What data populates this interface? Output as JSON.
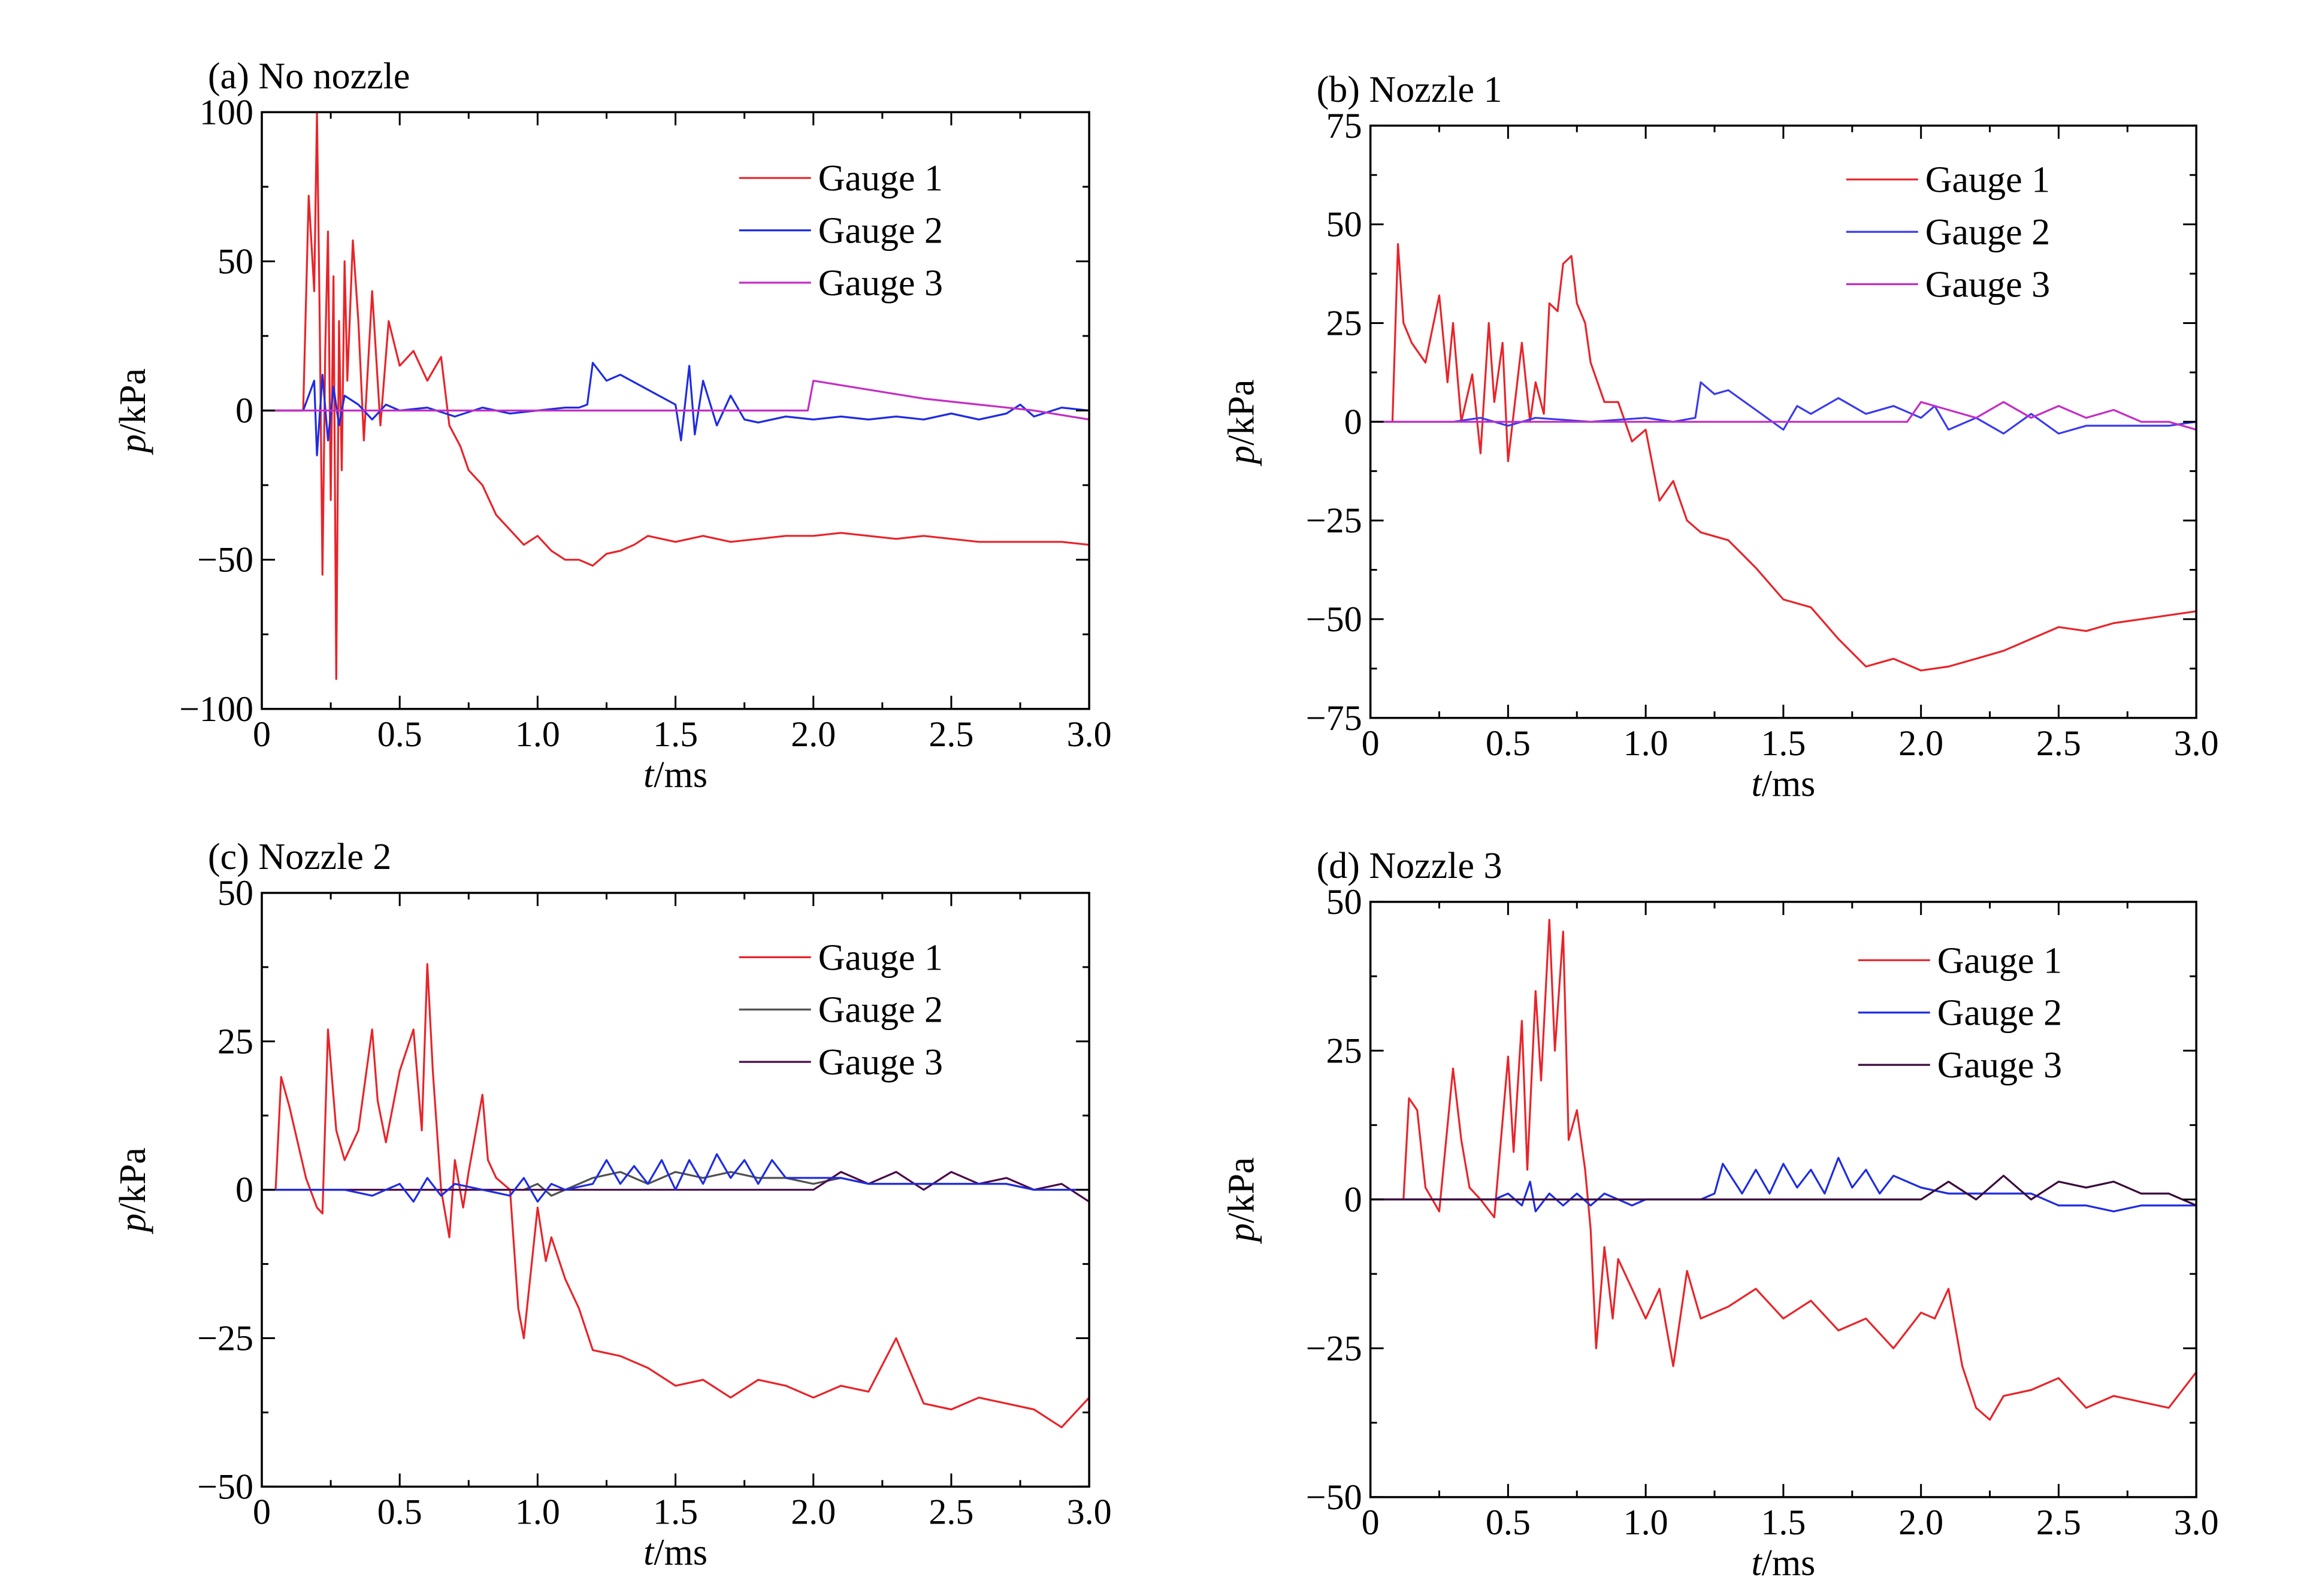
{
  "chart_data": [
    {
      "type": "line",
      "title": "(a) No nozzle",
      "xlabel_var": "t",
      "xlabel_unit": "/ms",
      "ylabel_var": "p",
      "ylabel_unit": "/kPa",
      "xlim": [
        0,
        3.0
      ],
      "ylim": [
        -100,
        100
      ],
      "xticks": [
        "0",
        "0.5",
        "1.0",
        "1.5",
        "2.0",
        "2.5",
        "3.0"
      ],
      "yticks": [
        "−100",
        "−50",
        "0",
        "50",
        "100"
      ],
      "yticks_values": [
        -100,
        -50,
        0,
        50,
        100
      ],
      "legend_position": "top-right",
      "grid": false,
      "series": [
        {
          "name": "Gauge 1",
          "color": "#e8242a",
          "x": [
            0,
            0.15,
            0.17,
            0.19,
            0.2,
            0.21,
            0.22,
            0.23,
            0.24,
            0.25,
            0.26,
            0.27,
            0.28,
            0.29,
            0.3,
            0.31,
            0.33,
            0.35,
            0.37,
            0.4,
            0.43,
            0.46,
            0.5,
            0.55,
            0.6,
            0.65,
            0.68,
            0.72,
            0.75,
            0.8,
            0.85,
            0.9,
            0.95,
            1.0,
            1.05,
            1.1,
            1.15,
            1.2,
            1.25,
            1.3,
            1.35,
            1.4,
            1.5,
            1.6,
            1.7,
            1.8,
            1.9,
            2.0,
            2.1,
            2.2,
            2.3,
            2.4,
            2.5,
            2.6,
            2.7,
            2.8,
            2.9,
            3.0
          ],
          "y": [
            0,
            0,
            72,
            40,
            100,
            30,
            -55,
            20,
            60,
            -30,
            45,
            -90,
            30,
            -20,
            50,
            10,
            57,
            30,
            -10,
            40,
            -5,
            30,
            15,
            20,
            10,
            18,
            -5,
            -12,
            -20,
            -25,
            -35,
            -40,
            -45,
            -42,
            -47,
            -50,
            -50,
            -52,
            -48,
            -47,
            -45,
            -42,
            -44,
            -42,
            -44,
            -43,
            -42,
            -42,
            -41,
            -42,
            -43,
            -42,
            -43,
            -44,
            -44,
            -44,
            -44,
            -45
          ]
        },
        {
          "name": "Gauge 2",
          "color": "#1f2ce0",
          "x": [
            0,
            0.15,
            0.19,
            0.2,
            0.22,
            0.24,
            0.26,
            0.28,
            0.3,
            0.35,
            0.4,
            0.45,
            0.5,
            0.6,
            0.7,
            0.8,
            0.9,
            1.0,
            1.1,
            1.15,
            1.18,
            1.2,
            1.25,
            1.3,
            1.4,
            1.5,
            1.52,
            1.55,
            1.57,
            1.6,
            1.65,
            1.7,
            1.75,
            1.8,
            1.9,
            2.0,
            2.1,
            2.2,
            2.3,
            2.4,
            2.5,
            2.6,
            2.7,
            2.75,
            2.8,
            2.9,
            3.0
          ],
          "y": [
            0,
            0,
            10,
            -15,
            12,
            -10,
            8,
            -5,
            5,
            2,
            -3,
            2,
            0,
            1,
            -2,
            1,
            -1,
            0,
            1,
            1,
            2,
            16,
            10,
            12,
            7,
            2,
            -10,
            15,
            -8,
            10,
            -5,
            5,
            -3,
            -4,
            -2,
            -3,
            -2,
            -3,
            -2,
            -3,
            -1,
            -3,
            -1,
            2,
            -2,
            1,
            0
          ]
        },
        {
          "name": "Gauge 3",
          "color": "#c42ec4",
          "x": [
            0,
            1.98,
            2.0,
            2.2,
            2.4,
            2.6,
            2.8,
            3.0
          ],
          "y": [
            0,
            0,
            10,
            7,
            4,
            2,
            0,
            -3
          ]
        }
      ]
    },
    {
      "type": "line",
      "title": "(b) Nozzle 1",
      "xlabel_var": "t",
      "xlabel_unit": "/ms",
      "ylabel_var": "p",
      "ylabel_unit": "/kPa",
      "xlim": [
        0,
        3.0
      ],
      "ylim": [
        -75,
        75
      ],
      "xticks": [
        "0",
        "0.5",
        "1.0",
        "1.5",
        "2.0",
        "2.5",
        "3.0"
      ],
      "yticks": [
        "−75",
        "−50",
        "−25",
        "0",
        "25",
        "50",
        "75"
      ],
      "yticks_values": [
        -75,
        -50,
        -25,
        0,
        25,
        50,
        75
      ],
      "legend_position": "top-right",
      "grid": false,
      "series": [
        {
          "name": "Gauge 1",
          "color": "#e8242a",
          "x": [
            0,
            0.08,
            0.1,
            0.12,
            0.15,
            0.2,
            0.25,
            0.28,
            0.3,
            0.33,
            0.37,
            0.4,
            0.43,
            0.45,
            0.48,
            0.5,
            0.55,
            0.58,
            0.6,
            0.63,
            0.65,
            0.68,
            0.7,
            0.73,
            0.75,
            0.78,
            0.8,
            0.85,
            0.9,
            0.95,
            1.0,
            1.05,
            1.1,
            1.15,
            1.2,
            1.3,
            1.4,
            1.5,
            1.6,
            1.7,
            1.8,
            1.9,
            2.0,
            2.1,
            2.2,
            2.3,
            2.4,
            2.5,
            2.6,
            2.7,
            2.8,
            2.9,
            3.0
          ],
          "y": [
            0,
            0,
            45,
            25,
            20,
            15,
            32,
            10,
            25,
            0,
            12,
            -8,
            25,
            5,
            20,
            -10,
            20,
            0,
            10,
            2,
            30,
            28,
            40,
            42,
            30,
            25,
            15,
            5,
            5,
            -5,
            -2,
            -20,
            -15,
            -25,
            -28,
            -30,
            -37,
            -45,
            -47,
            -55,
            -62,
            -60,
            -63,
            -62,
            -60,
            -58,
            -55,
            -52,
            -53,
            -51,
            -50,
            -49,
            -48
          ]
        },
        {
          "name": "Gauge 2",
          "color": "#3a3af0",
          "x": [
            0,
            0.3,
            0.4,
            0.5,
            0.6,
            0.8,
            1.0,
            1.1,
            1.18,
            1.2,
            1.25,
            1.3,
            1.4,
            1.5,
            1.55,
            1.6,
            1.7,
            1.8,
            1.9,
            2.0,
            2.05,
            2.1,
            2.2,
            2.3,
            2.4,
            2.5,
            2.6,
            2.7,
            2.8,
            2.9,
            3.0
          ],
          "y": [
            0,
            0,
            1,
            -1,
            1,
            0,
            1,
            0,
            1,
            10,
            7,
            8,
            3,
            -2,
            4,
            2,
            6,
            2,
            4,
            1,
            4,
            -2,
            1,
            -3,
            2,
            -3,
            -1,
            -1,
            -1,
            -1,
            0
          ]
        },
        {
          "name": "Gauge 3",
          "color": "#c42ec4",
          "x": [
            0,
            1.95,
            2.0,
            2.1,
            2.2,
            2.3,
            2.4,
            2.5,
            2.6,
            2.7,
            2.8,
            2.9,
            3.0
          ],
          "y": [
            0,
            0,
            5,
            3,
            1,
            5,
            1,
            4,
            1,
            3,
            0,
            0,
            -2
          ]
        }
      ]
    },
    {
      "type": "line",
      "title": "(c) Nozzle 2",
      "xlabel_var": "t",
      "xlabel_unit": "/ms",
      "ylabel_var": "p",
      "ylabel_unit": "/kPa",
      "xlim": [
        0,
        3.0
      ],
      "ylim": [
        -50,
        50
      ],
      "xticks": [
        "0",
        "0.5",
        "1.0",
        "1.5",
        "2.0",
        "2.5",
        "3.0"
      ],
      "yticks": [
        "−50",
        "−25",
        "0",
        "25",
        "50"
      ],
      "yticks_values": [
        -50,
        -25,
        0,
        25,
        50
      ],
      "legend_position": "top-right",
      "grid": false,
      "series": [
        {
          "name": "Gauge 1",
          "color": "#e8242a",
          "x": [
            0,
            0.05,
            0.07,
            0.1,
            0.13,
            0.16,
            0.2,
            0.22,
            0.24,
            0.27,
            0.3,
            0.35,
            0.4,
            0.42,
            0.45,
            0.5,
            0.55,
            0.58,
            0.6,
            0.62,
            0.65,
            0.68,
            0.7,
            0.73,
            0.75,
            0.8,
            0.82,
            0.85,
            0.9,
            0.93,
            0.95,
            1.0,
            1.03,
            1.05,
            1.1,
            1.15,
            1.2,
            1.3,
            1.4,
            1.5,
            1.6,
            1.7,
            1.8,
            1.9,
            2.0,
            2.1,
            2.2,
            2.3,
            2.4,
            2.5,
            2.6,
            2.7,
            2.8,
            2.9,
            3.0
          ],
          "y": [
            0,
            0,
            19,
            14,
            8,
            2,
            -3,
            -4,
            27,
            10,
            5,
            10,
            27,
            15,
            8,
            20,
            27,
            10,
            38,
            20,
            0,
            -8,
            5,
            -3,
            3,
            16,
            5,
            2,
            0,
            -20,
            -25,
            -3,
            -12,
            -8,
            -15,
            -20,
            -27,
            -28,
            -30,
            -33,
            -32,
            -35,
            -32,
            -33,
            -35,
            -33,
            -34,
            -25,
            -36,
            -37,
            -35,
            -36,
            -37,
            -40,
            -35
          ]
        },
        {
          "name": "Gauge 2",
          "color": "#505050",
          "x": [
            0,
            0.95,
            1.0,
            1.05,
            1.1,
            1.2,
            1.3,
            1.4,
            1.5,
            1.6,
            1.7,
            1.8,
            1.9,
            2.0,
            2.1,
            2.2,
            2.3,
            2.4,
            2.5,
            2.6,
            2.7,
            2.8,
            2.9,
            3.0
          ],
          "y": [
            0,
            0,
            1,
            -1,
            0,
            2,
            3,
            1,
            3,
            2,
            3,
            2,
            2,
            1,
            2,
            1,
            1,
            1,
            1,
            1,
            1,
            0,
            0,
            0
          ]
        },
        {
          "name": "Gauge 3",
          "color": "#4a0a4a",
          "x": [
            0,
            2.0,
            2.1,
            2.2,
            2.3,
            2.4,
            2.5,
            2.6,
            2.7,
            2.8,
            2.9,
            3.0
          ],
          "y": [
            0,
            0,
            3,
            1,
            3,
            0,
            3,
            1,
            2,
            0,
            1,
            -2
          ]
        },
        {
          "name": "",
          "color": "#1f2ce0",
          "x": [
            0,
            0.3,
            0.4,
            0.5,
            0.55,
            0.6,
            0.65,
            0.7,
            0.8,
            0.9,
            0.95,
            1.0,
            1.05,
            1.1,
            1.2,
            1.25,
            1.3,
            1.35,
            1.4,
            1.45,
            1.5,
            1.55,
            1.6,
            1.65,
            1.7,
            1.75,
            1.8,
            1.85,
            1.9,
            2.0,
            2.1,
            2.2,
            2.3,
            2.4,
            2.5,
            2.6,
            2.7,
            2.8,
            2.9,
            3.0
          ],
          "y": [
            0,
            0,
            -1,
            1,
            -2,
            2,
            -1,
            1,
            0,
            -1,
            2,
            -2,
            1,
            0,
            1,
            5,
            1,
            4,
            1,
            5,
            0,
            5,
            1,
            6,
            2,
            5,
            1,
            5,
            2,
            2,
            2,
            1,
            1,
            1,
            1,
            1,
            1,
            0,
            0,
            0
          ]
        }
      ]
    },
    {
      "type": "line",
      "title": "(d) Nozzle 3",
      "xlabel_var": "t",
      "xlabel_unit": "/ms",
      "ylabel_var": "p",
      "ylabel_unit": "/kPa",
      "xlim": [
        0,
        3.0
      ],
      "ylim": [
        -50,
        50
      ],
      "xticks": [
        "0",
        "0.5",
        "1.0",
        "1.5",
        "2.0",
        "2.5",
        "3.0"
      ],
      "yticks": [
        "−50",
        "−25",
        "0",
        "25",
        "50"
      ],
      "yticks_values": [
        -50,
        -25,
        0,
        25,
        50
      ],
      "legend_position": "top-right",
      "grid": false,
      "series": [
        {
          "name": "Gauge 1",
          "color": "#e8242a",
          "x": [
            0,
            0.12,
            0.14,
            0.17,
            0.2,
            0.25,
            0.3,
            0.33,
            0.36,
            0.4,
            0.45,
            0.5,
            0.52,
            0.55,
            0.57,
            0.6,
            0.62,
            0.65,
            0.67,
            0.7,
            0.72,
            0.75,
            0.78,
            0.8,
            0.82,
            0.85,
            0.88,
            0.9,
            0.95,
            1.0,
            1.05,
            1.1,
            1.15,
            1.2,
            1.3,
            1.4,
            1.5,
            1.6,
            1.7,
            1.8,
            1.9,
            2.0,
            2.05,
            2.1,
            2.15,
            2.2,
            2.25,
            2.3,
            2.4,
            2.5,
            2.6,
            2.7,
            2.8,
            2.9,
            3.0
          ],
          "y": [
            0,
            0,
            17,
            15,
            2,
            -2,
            22,
            10,
            2,
            0,
            -3,
            24,
            8,
            30,
            5,
            35,
            20,
            47,
            25,
            45,
            10,
            15,
            5,
            -5,
            -25,
            -8,
            -20,
            -10,
            -15,
            -20,
            -15,
            -28,
            -12,
            -20,
            -18,
            -15,
            -20,
            -17,
            -22,
            -20,
            -25,
            -19,
            -20,
            -15,
            -28,
            -35,
            -37,
            -33,
            -32,
            -30,
            -35,
            -33,
            -34,
            -35,
            -29
          ]
        },
        {
          "name": "Gauge 2",
          "color": "#1f2ce0",
          "x": [
            0,
            0.45,
            0.5,
            0.55,
            0.58,
            0.6,
            0.65,
            0.7,
            0.75,
            0.8,
            0.85,
            0.9,
            0.95,
            1.0,
            1.1,
            1.2,
            1.25,
            1.28,
            1.35,
            1.4,
            1.45,
            1.5,
            1.55,
            1.6,
            1.65,
            1.7,
            1.75,
            1.8,
            1.85,
            1.9,
            2.0,
            2.1,
            2.2,
            2.3,
            2.4,
            2.5,
            2.6,
            2.7,
            2.8,
            2.9,
            3.0
          ],
          "y": [
            0,
            0,
            1,
            -1,
            3,
            -2,
            1,
            -1,
            1,
            -1,
            1,
            0,
            -1,
            0,
            0,
            0,
            1,
            6,
            1,
            5,
            1,
            6,
            2,
            5,
            1,
            7,
            2,
            5,
            1,
            4,
            2,
            1,
            1,
            1,
            1,
            -1,
            -1,
            -2,
            -1,
            -1,
            -1
          ]
        },
        {
          "name": "Gauge 3",
          "color": "#3a0a3a",
          "x": [
            0,
            2.0,
            2.1,
            2.2,
            2.3,
            2.4,
            2.5,
            2.6,
            2.7,
            2.8,
            2.9,
            3.0
          ],
          "y": [
            0,
            0,
            3,
            0,
            4,
            0,
            3,
            2,
            3,
            1,
            1,
            -1
          ]
        }
      ]
    }
  ]
}
